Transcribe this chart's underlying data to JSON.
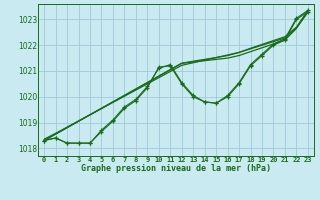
{
  "title": "Graphe pression niveau de la mer (hPa)",
  "bg_color": "#c8eaf0",
  "grid_color": "#a0c8d8",
  "line_color": "#1a6b1a",
  "xlim": [
    -0.5,
    23.5
  ],
  "ylim": [
    1017.7,
    1023.6
  ],
  "yticks": [
    1018,
    1019,
    1020,
    1021,
    1022,
    1023
  ],
  "xtick_labels": [
    "0",
    "1",
    "2",
    "3",
    "4",
    "5",
    "6",
    "7",
    "8",
    "9",
    "10",
    "11",
    "12",
    "13",
    "14",
    "15",
    "16",
    "17",
    "18",
    "19",
    "20",
    "21",
    "22",
    "23"
  ],
  "line_straight1": [
    1018.3,
    1018.55,
    1018.8,
    1019.05,
    1019.3,
    1019.55,
    1019.8,
    1020.05,
    1020.3,
    1020.55,
    1020.8,
    1021.05,
    1021.3,
    1021.35,
    1021.4,
    1021.45,
    1021.5,
    1021.6,
    1021.75,
    1021.9,
    1022.05,
    1022.2,
    1022.65,
    1023.3
  ],
  "line_straight2": [
    1018.3,
    1018.55,
    1018.8,
    1019.05,
    1019.3,
    1019.55,
    1019.8,
    1020.05,
    1020.3,
    1020.55,
    1020.8,
    1021.05,
    1021.3,
    1021.38,
    1021.45,
    1021.52,
    1021.6,
    1021.72,
    1021.88,
    1022.03,
    1022.18,
    1022.33,
    1022.7,
    1023.35
  ],
  "line_straight3": [
    1018.35,
    1018.58,
    1018.82,
    1019.06,
    1019.3,
    1019.54,
    1019.78,
    1020.02,
    1020.26,
    1020.5,
    1020.74,
    1020.98,
    1021.22,
    1021.32,
    1021.42,
    1021.52,
    1021.62,
    1021.72,
    1021.86,
    1022.0,
    1022.14,
    1022.28,
    1022.68,
    1023.28
  ],
  "line_wavy": [
    1018.3,
    1018.4,
    1018.2,
    1018.2,
    1018.2,
    1018.65,
    1019.05,
    1019.55,
    1019.85,
    1020.35,
    1021.15,
    1021.2,
    1020.5,
    1020.0,
    1019.8,
    1019.75,
    1020.0,
    1020.5,
    1021.2,
    1021.6,
    1022.0,
    1022.2,
    1023.0,
    1023.3
  ],
  "line_wavy2": [
    1018.3,
    1018.4,
    1018.2,
    1018.2,
    1018.2,
    1018.7,
    1019.1,
    1019.6,
    1019.9,
    1020.4,
    1021.1,
    1021.25,
    1020.55,
    1020.05,
    1019.8,
    1019.75,
    1020.05,
    1020.55,
    1021.25,
    1021.65,
    1022.05,
    1022.25,
    1023.05,
    1023.35
  ]
}
